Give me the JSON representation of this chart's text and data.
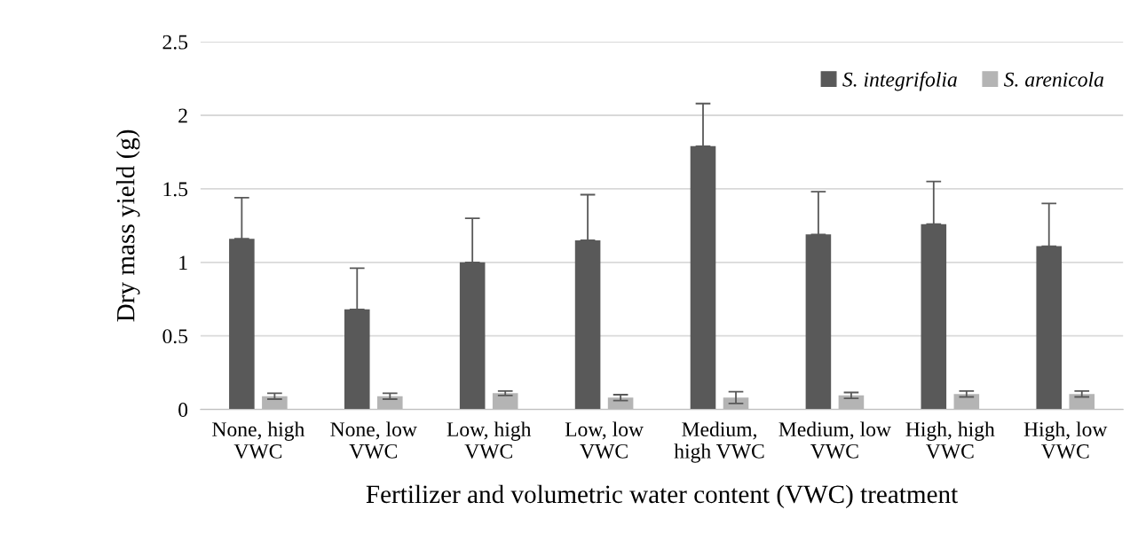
{
  "chart_data": {
    "type": "bar",
    "xlabel": "Fertilizer and volumetric water content (VWC) treatment",
    "ylabel": "Dry mass yield (g)",
    "categories": [
      "None, high\nVWC",
      "None, low\nVWC",
      "Low, high\nVWC",
      "Low, low\nVWC",
      "Medium,\nhigh VWC",
      "Medium, low\nVWC",
      "High, high\nVWC",
      "High, low\nVWC"
    ],
    "series": [
      {
        "name": "S. integrifolia",
        "color": "#595959",
        "values": [
          1.16,
          0.68,
          1.0,
          1.15,
          1.79,
          1.19,
          1.26,
          1.11
        ],
        "errors": [
          0.28,
          0.28,
          0.3,
          0.31,
          0.29,
          0.29,
          0.29,
          0.29
        ]
      },
      {
        "name": "S. arenicola",
        "color": "#b4b4b4",
        "values": [
          0.09,
          0.09,
          0.11,
          0.08,
          0.08,
          0.095,
          0.105,
          0.105
        ],
        "errors": [
          0.02,
          0.02,
          0.015,
          0.02,
          0.04,
          0.02,
          0.02,
          0.02
        ]
      }
    ],
    "ylim": [
      0,
      2.5
    ],
    "yticks": [
      0,
      0.5,
      1,
      1.5,
      2,
      2.5
    ],
    "grid": "y",
    "legend": "top right"
  }
}
